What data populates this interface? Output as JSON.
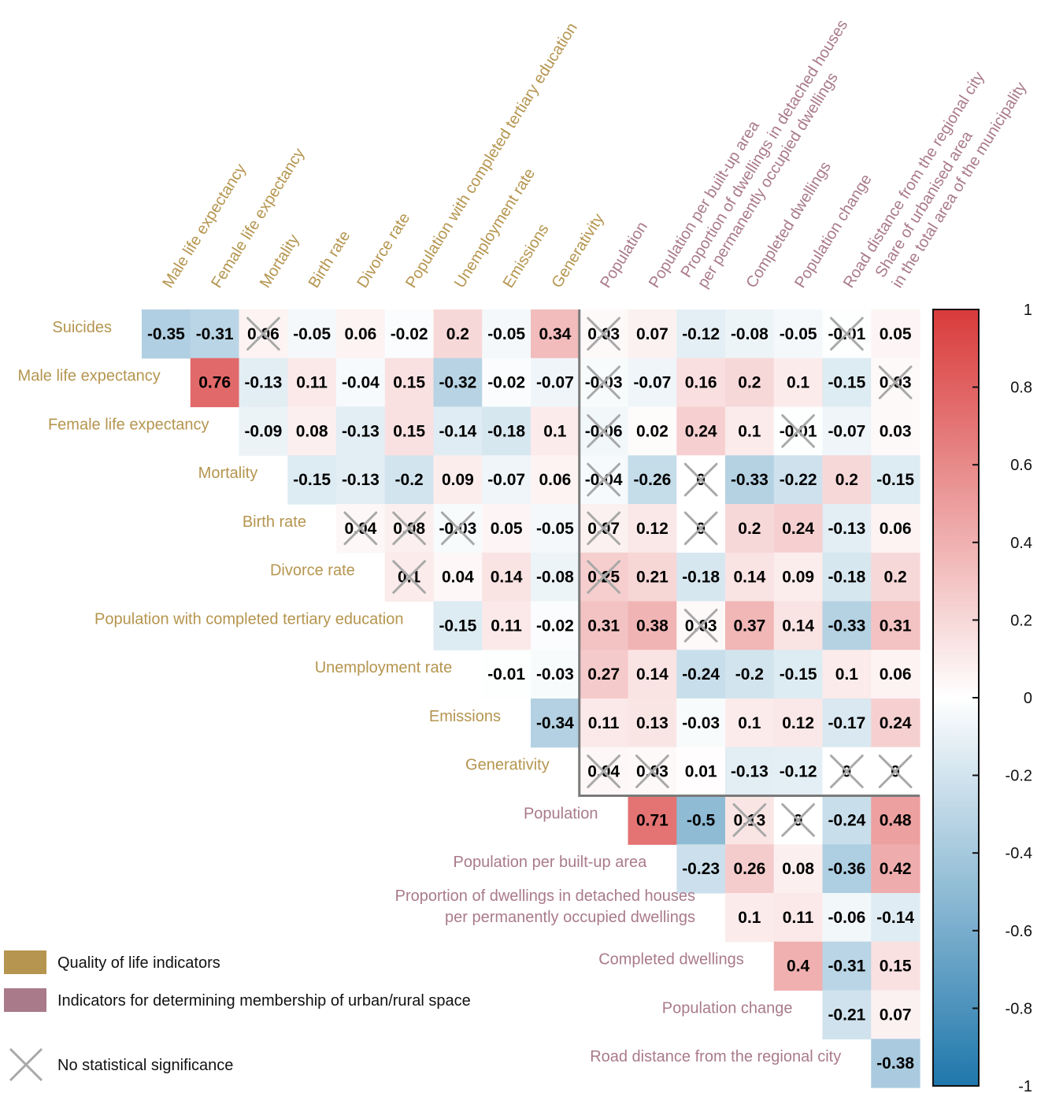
{
  "chart_data": {
    "type": "heatmap",
    "title": "",
    "colors": {
      "quality": "#b5954f",
      "urban": "#a97a8a",
      "positive": "#d93a3a",
      "negative": "#1f77ab",
      "nonsig_cross": "#a8a8a8",
      "frame": "#7a7a7a"
    },
    "rows": [
      {
        "label": "Suicides",
        "group": "quality"
      },
      {
        "label": "Male life expectancy",
        "group": "quality"
      },
      {
        "label": "Female life expectancy",
        "group": "quality"
      },
      {
        "label": "Mortality",
        "group": "quality"
      },
      {
        "label": "Birth rate",
        "group": "quality"
      },
      {
        "label": "Divorce rate",
        "group": "quality"
      },
      {
        "label": "Population with completed tertiary education",
        "group": "quality"
      },
      {
        "label": "Unemployment rate",
        "group": "quality"
      },
      {
        "label": "Emissions",
        "group": "quality"
      },
      {
        "label": "Generativity",
        "group": "quality"
      },
      {
        "label": "Population",
        "group": "urban"
      },
      {
        "label": "Population per built-up area",
        "group": "urban"
      },
      {
        "label": "Proportion of dwellings in detached houses per permanently occupied dwellings",
        "lines": [
          "Proportion of dwellings in detached houses",
          "per permanently occupied dwellings"
        ],
        "group": "urban"
      },
      {
        "label": "Completed dwellings",
        "group": "urban"
      },
      {
        "label": "Population change",
        "group": "urban"
      },
      {
        "label": "Road distance from the regional city",
        "group": "urban"
      }
    ],
    "columns": [
      {
        "label": "Male life expectancy",
        "group": "quality"
      },
      {
        "label": "Female life expectancy",
        "group": "quality"
      },
      {
        "label": "Mortality",
        "group": "quality"
      },
      {
        "label": "Birth rate",
        "group": "quality"
      },
      {
        "label": "Divorce rate",
        "group": "quality"
      },
      {
        "label": "Population with completed tertiary education",
        "group": "quality"
      },
      {
        "label": "Unemployment rate",
        "group": "quality"
      },
      {
        "label": "Emissions",
        "group": "quality"
      },
      {
        "label": "Generativity",
        "group": "quality"
      },
      {
        "label": "Population",
        "group": "urban"
      },
      {
        "label": "Population per built-up area",
        "group": "urban"
      },
      {
        "label": "Proportion of dwellings in detached houses per permanently occupied dwellings",
        "lines": [
          "Proportion of dwellings in detached houses",
          "per permanently occupied dwellings"
        ],
        "group": "urban"
      },
      {
        "label": "Completed dwellings",
        "group": "urban"
      },
      {
        "label": "Population change",
        "group": "urban"
      },
      {
        "label": "Road distance from the regional city",
        "group": "urban"
      },
      {
        "label": "Share of urbanised area in the total area of the municipality",
        "lines": [
          "Share of urbanised area",
          "in the total area of the municipality"
        ],
        "group": "urban"
      }
    ],
    "values": [
      [
        -0.35,
        -0.31,
        0.06,
        -0.05,
        0.06,
        -0.02,
        0.2,
        -0.05,
        0.34,
        0.03,
        0.07,
        -0.12,
        -0.08,
        -0.05,
        -0.01,
        0.05
      ],
      [
        0.76,
        -0.13,
        0.11,
        -0.04,
        0.15,
        -0.32,
        -0.02,
        -0.07,
        -0.03,
        -0.07,
        0.16,
        0.2,
        0.1,
        -0.15,
        0.03
      ],
      [
        -0.09,
        0.08,
        -0.13,
        0.15,
        -0.14,
        -0.18,
        0.1,
        -0.06,
        0.02,
        0.24,
        0.1,
        -0.01,
        -0.07,
        0.03
      ],
      [
        -0.15,
        -0.13,
        -0.2,
        0.09,
        -0.07,
        0.06,
        -0.04,
        -0.26,
        0,
        -0.33,
        -0.22,
        0.2,
        -0.15
      ],
      [
        0.04,
        0.08,
        -0.03,
        0.05,
        -0.05,
        0.07,
        0.12,
        0,
        0.2,
        0.24,
        -0.13,
        0.06
      ],
      [
        0.1,
        0.04,
        0.14,
        -0.08,
        0.25,
        0.21,
        -0.18,
        0.14,
        0.09,
        -0.18,
        0.2
      ],
      [
        -0.15,
        0.11,
        -0.02,
        0.31,
        0.38,
        0.03,
        0.37,
        0.14,
        -0.33,
        0.31
      ],
      [
        -0.01,
        -0.03,
        0.27,
        0.14,
        -0.24,
        -0.2,
        -0.15,
        0.1,
        0.06
      ],
      [
        -0.34,
        0.11,
        0.13,
        -0.03,
        0.1,
        0.12,
        -0.17,
        0.24
      ],
      [
        0.04,
        0.03,
        0.01,
        -0.13,
        -0.12,
        0,
        0
      ],
      [
        0.71,
        -0.5,
        0.13,
        0,
        -0.24,
        0.48
      ],
      [
        -0.23,
        0.26,
        0.08,
        -0.36,
        0.42
      ],
      [
        0.1,
        0.11,
        -0.06,
        -0.14
      ],
      [
        0.4,
        -0.31,
        0.15
      ],
      [
        -0.21,
        0.07
      ],
      [
        -0.38
      ]
    ],
    "value_labels": [
      [
        "-0.35",
        "-0.31",
        "0.06",
        "-0.05",
        "0.06",
        "-0.02",
        "0.2",
        "-0.05",
        "0.34",
        "0.03",
        "0.07",
        "-0.12",
        "-0.08",
        "-0.05",
        "-0.01",
        "0.05"
      ],
      [
        "0.76",
        "-0.13",
        "0.11",
        "-0.04",
        "0.15",
        "-0.32",
        "-0.02",
        "-0.07",
        "-0.03",
        "-0.07",
        "0.16",
        "0.2",
        "0.1",
        "-0.15",
        "0.03"
      ],
      [
        "-0.09",
        "0.08",
        "-0.13",
        "0.15",
        "-0.14",
        "-0.18",
        "0.1",
        "-0.06",
        "0.02",
        "0.24",
        "0.1",
        "-0.01",
        "-0.07",
        "0.03"
      ],
      [
        "-0.15",
        "-0.13",
        "-0.2",
        "0.09",
        "-0.07",
        "0.06",
        "-0.04",
        "-0.26",
        "0",
        "-0.33",
        "-0.22",
        "0.2",
        "-0.15"
      ],
      [
        "0.04",
        "0.08",
        "-0.03",
        "0.05",
        "-0.05",
        "0.07",
        "0.12",
        "0",
        "0.2",
        "0.24",
        "-0.13",
        "0.06"
      ],
      [
        "0.1",
        "0.04",
        "0.14",
        "-0.08",
        "0.25",
        "0.21",
        "-0.18",
        "0.14",
        "0.09",
        "-0.18",
        "0.2"
      ],
      [
        "-0.15",
        "0.11",
        "-0.02",
        "0.31",
        "0.38",
        "0.03",
        "0.37",
        "0.14",
        "-0.33",
        "0.31"
      ],
      [
        "-0.01",
        "-0.03",
        "0.27",
        "0.14",
        "-0.24",
        "-0.2",
        "-0.15",
        "0.1",
        "0.06"
      ],
      [
        "-0.34",
        "0.11",
        "0.13",
        "-0.03",
        "0.1",
        "0.12",
        "-0.17",
        "0.24"
      ],
      [
        "0.04",
        "0.03",
        "0.01",
        "-0.13",
        "-0.12",
        "0",
        "0"
      ],
      [
        "0.71",
        "-0.5",
        "0.13",
        "0",
        "-0.24",
        "0.48"
      ],
      [
        "-0.23",
        "0.26",
        "0.08",
        "-0.36",
        "0.42"
      ],
      [
        "0.1",
        "0.11",
        "-0.06",
        "-0.14"
      ],
      [
        "0.4",
        "-0.31",
        "0.15"
      ],
      [
        "-0.21",
        "0.07"
      ],
      [
        "-0.38"
      ]
    ],
    "not_significant": [
      [
        2,
        9,
        14
      ],
      [
        9,
        15
      ],
      [
        9,
        13
      ],
      [
        9,
        11
      ],
      [
        4,
        5,
        6,
        9,
        11
      ],
      [
        5,
        9
      ],
      [
        11
      ],
      [],
      [],
      [
        9,
        10,
        14,
        15
      ],
      [
        12,
        13
      ],
      [],
      [],
      [],
      [],
      []
    ],
    "colorbar": {
      "range": [
        -1,
        1
      ],
      "ticks": [
        "1",
        "0.8",
        "0.6",
        "0.4",
        "0.2",
        "0",
        "-0.2",
        "-0.4",
        "-0.6",
        "-0.8",
        "-1"
      ]
    },
    "legend": [
      {
        "label": "Quality of life indicators",
        "key": "quality"
      },
      {
        "label": "Indicators for determining membership of urban/rural space",
        "key": "urban"
      },
      {
        "label": "No statistical significance",
        "key": "nonsig"
      }
    ]
  }
}
